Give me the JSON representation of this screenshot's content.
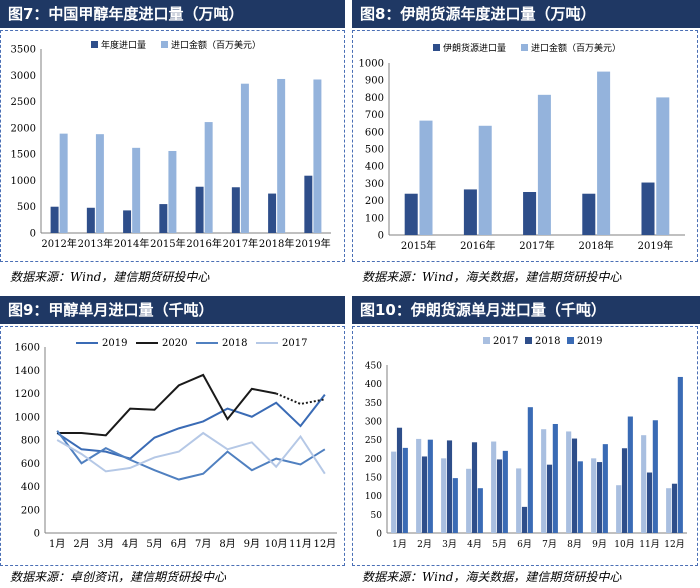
{
  "panels": [
    {
      "title": "图7：中国甲醇年度进口量（万吨）",
      "source": "数据来源：Wind，建信期货研投中心"
    },
    {
      "title": "图8：伊朗货源年度进口量（万吨）",
      "source": "数据来源：Wind，海关数据，建信期货研投中心"
    },
    {
      "title": "图9：甲醇单月进口量（千吨）",
      "source": "数据来源：卓创资讯，建信期货研投中心"
    },
    {
      "title": "图10：伊朗货源单月进口量（千吨）",
      "source": "数据来源：Wind，海关数据，建信期货研投中心"
    }
  ],
  "colors": {
    "dark": "#2e4e8a",
    "light": "#94b3dc",
    "line2019": "#3a6bb5",
    "line2020": "#1a1a1a",
    "line2018": "#5080c0",
    "line2017": "#b5c8e6",
    "bar2017": "#a9bfe0",
    "bar2018": "#2e4e8a",
    "bar2019": "#3a6bb5"
  },
  "chart_data": [
    {
      "type": "bar",
      "categories": [
        "2012年",
        "2013年",
        "2014年",
        "2015年",
        "2016年",
        "2017年",
        "2018年",
        "2019年"
      ],
      "series": [
        {
          "name": "年度进口量",
          "values": [
            500,
            480,
            430,
            550,
            880,
            870,
            750,
            1090
          ]
        },
        {
          "name": "进口金额（百万美元）",
          "values": [
            1890,
            1880,
            1620,
            1560,
            2110,
            2840,
            2930,
            2920
          ]
        }
      ],
      "ylim": [
        0,
        3500
      ],
      "yticks": [
        "0",
        "500",
        "1000",
        "1500",
        "2000",
        "2500",
        "3000",
        "3500"
      ],
      "legend": "top"
    },
    {
      "type": "bar",
      "categories": [
        "2015年",
        "2016年",
        "2017年",
        "2018年",
        "2019年"
      ],
      "series": [
        {
          "name": "伊朗货源进口量",
          "values": [
            240,
            265,
            250,
            240,
            305
          ]
        },
        {
          "name": "进口金额（百万美元）",
          "values": [
            665,
            635,
            815,
            950,
            800
          ]
        }
      ],
      "ylim": [
        0,
        1000
      ],
      "yticks": [
        "0",
        "100",
        "200",
        "300",
        "400",
        "500",
        "600",
        "700",
        "800",
        "900",
        "1000"
      ],
      "legend": "top"
    },
    {
      "type": "line",
      "categories": [
        "1月",
        "2月",
        "3月",
        "4月",
        "5月",
        "6月",
        "7月",
        "8月",
        "9月",
        "10月",
        "11月",
        "12月"
      ],
      "series": [
        {
          "name": "2019",
          "values": [
            860,
            720,
            700,
            640,
            820,
            900,
            960,
            1070,
            1000,
            1120,
            920,
            1190
          ]
        },
        {
          "name": "2020",
          "values": [
            860,
            860,
            840,
            1070,
            1060,
            1270,
            1360,
            980,
            1240,
            1200,
            1110,
            1150
          ]
        },
        {
          "name": "2018",
          "values": [
            880,
            600,
            730,
            630,
            540,
            460,
            510,
            700,
            540,
            640,
            590,
            720
          ]
        },
        {
          "name": "2017",
          "values": [
            800,
            680,
            530,
            560,
            650,
            700,
            860,
            720,
            780,
            570,
            830,
            510
          ]
        }
      ],
      "dashed_from_index": {
        "2020": 9
      },
      "ylim": [
        0,
        1600
      ],
      "yticks": [
        "0",
        "200",
        "400",
        "600",
        "800",
        "1000",
        "1200",
        "1400",
        "1600"
      ],
      "legend": "top"
    },
    {
      "type": "bar",
      "categories": [
        "1月",
        "2月",
        "3月",
        "4月",
        "5月",
        "6月",
        "7月",
        "8月",
        "9月",
        "10月",
        "11月",
        "12月"
      ],
      "series": [
        {
          "name": "2017",
          "values": [
            218,
            252,
            200,
            172,
            245,
            173,
            278,
            272,
            200,
            128,
            262,
            120
          ]
        },
        {
          "name": "2018",
          "values": [
            282,
            205,
            248,
            243,
            197,
            70,
            183,
            253,
            190,
            227,
            162,
            132
          ]
        },
        {
          "name": "2019",
          "values": [
            228,
            250,
            147,
            120,
            220,
            337,
            292,
            192,
            238,
            312,
            302,
            418
          ]
        }
      ],
      "ylim": [
        0,
        450
      ],
      "yticks": [
        "0",
        "50",
        "100",
        "150",
        "200",
        "250",
        "300",
        "350",
        "400",
        "450"
      ],
      "legend": "top"
    }
  ]
}
